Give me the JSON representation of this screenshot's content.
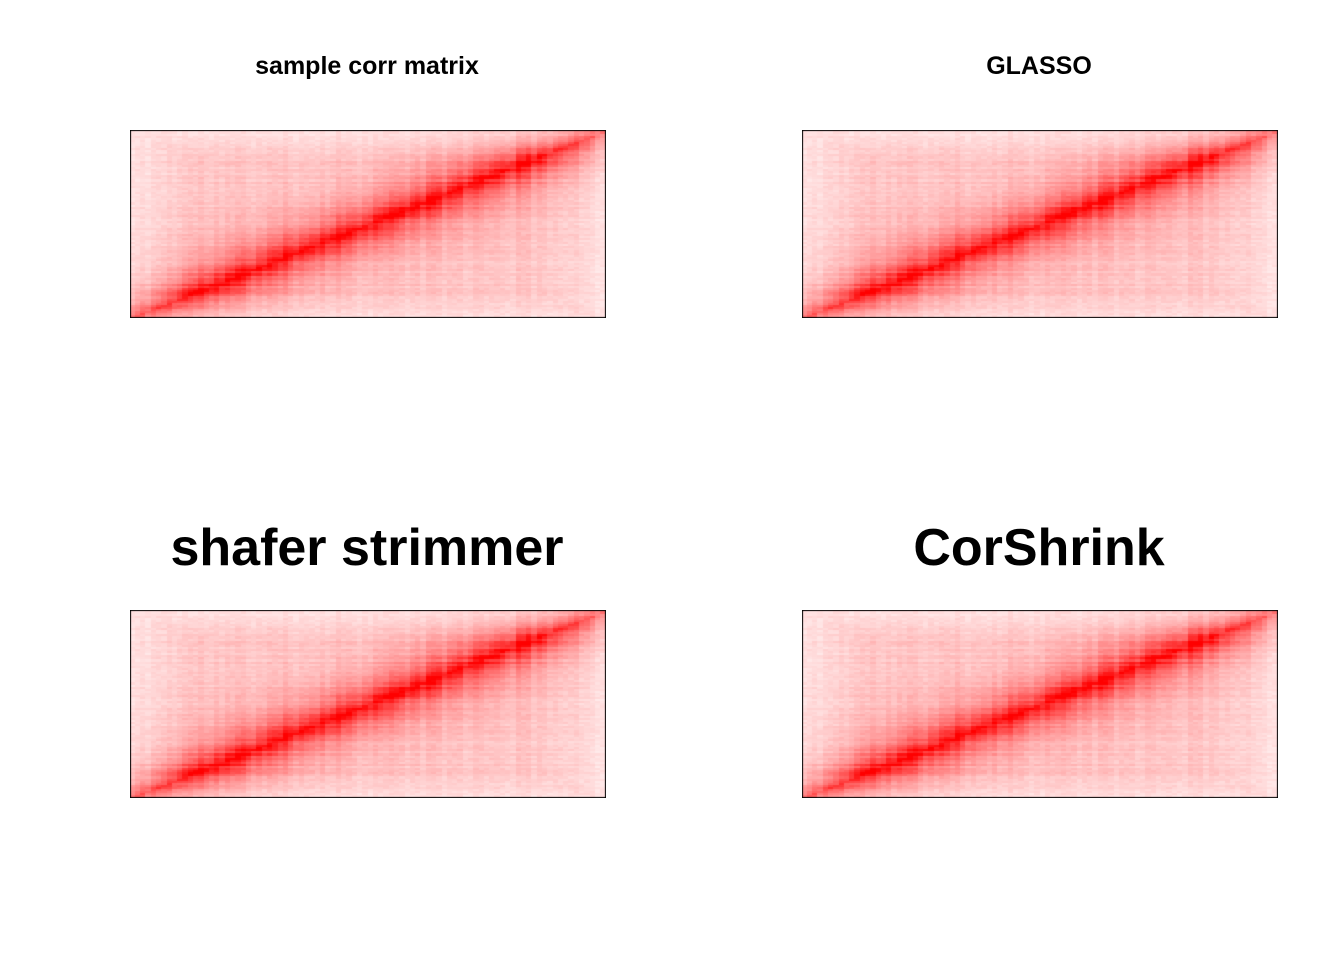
{
  "chart_data": [
    {
      "type": "heatmap",
      "title": "sample corr matrix",
      "title_size": "small",
      "color_low": "#ffffff",
      "color_high": "#ff0000",
      "value_range": [
        0,
        1
      ],
      "matrix_orientation": "diagonal from bottom-left to top-right",
      "axes": false,
      "seed": 11
    },
    {
      "type": "heatmap",
      "title": "GLASSO",
      "title_size": "small",
      "color_low": "#ffffff",
      "color_high": "#ff0000",
      "value_range": [
        0,
        1
      ],
      "matrix_orientation": "diagonal from bottom-left to top-right",
      "axes": false,
      "seed": 11
    },
    {
      "type": "heatmap",
      "title": "shafer strimmer",
      "title_size": "large",
      "color_low": "#ffffff",
      "color_high": "#ff0000",
      "value_range": [
        0,
        1
      ],
      "matrix_orientation": "diagonal from bottom-left to top-right",
      "axes": false,
      "seed": 11
    },
    {
      "type": "heatmap",
      "title": "CorShrink",
      "title_size": "large",
      "color_low": "#ffffff",
      "color_high": "#ff0000",
      "value_range": [
        0,
        1
      ],
      "matrix_orientation": "diagonal from bottom-left to top-right",
      "axes": false,
      "seed": 11
    }
  ]
}
